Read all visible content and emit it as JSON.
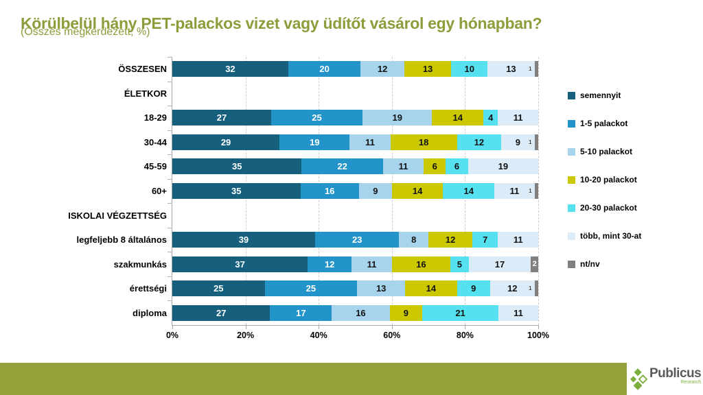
{
  "header": {
    "title": "Körülbelül hány PET-palackos vizet vagy üdítőt vásárol egy hónapban?",
    "subtitle": "(Összes megkérdezett, %)",
    "title_color": "#8e9c3b"
  },
  "chart_data": {
    "type": "bar",
    "stacked": true,
    "orientation": "horizontal",
    "xlim": [
      0,
      100
    ],
    "x_ticks": [
      "0%",
      "20%",
      "40%",
      "60%",
      "80%",
      "100%"
    ],
    "grid": "vertical dashed every 20%",
    "legend_position": "right",
    "series_labels": [
      "semennyit",
      "1-5 palackot",
      "5-10 palackot",
      "10-20 palackot",
      "20-30 palackot",
      "több, mint 30-at",
      "nt/nv"
    ],
    "series_colors": [
      "#16607e",
      "#2394c9",
      "#a7d3ec",
      "#cbc800",
      "#55e1ef",
      "#dbebf7",
      "#808080"
    ],
    "categories": [
      {
        "label": "ÖSSZESEN",
        "header": false,
        "values": [
          32,
          20,
          12,
          13,
          10,
          13,
          1
        ]
      },
      {
        "label": "ÉLETKOR",
        "header": true,
        "values": null
      },
      {
        "label": "18-29",
        "header": false,
        "values": [
          27,
          25,
          19,
          14,
          4,
          11,
          0
        ]
      },
      {
        "label": "30-44",
        "header": false,
        "values": [
          29,
          19,
          11,
          18,
          12,
          9,
          1
        ]
      },
      {
        "label": "45-59",
        "header": false,
        "values": [
          35,
          22,
          11,
          6,
          6,
          19,
          0
        ]
      },
      {
        "label": "60+",
        "header": false,
        "values": [
          35,
          16,
          9,
          14,
          14,
          11,
          1
        ]
      },
      {
        "label": "ISKOLAI VÉGZETTSÉG",
        "header": true,
        "values": null
      },
      {
        "label": "legfeljebb 8 általános",
        "header": false,
        "values": [
          39,
          23,
          8,
          12,
          7,
          11,
          0
        ]
      },
      {
        "label": "szakmunkás",
        "header": false,
        "values": [
          37,
          12,
          11,
          16,
          5,
          17,
          2
        ]
      },
      {
        "label": "érettségi",
        "header": false,
        "values": [
          25,
          25,
          13,
          14,
          9,
          12,
          1
        ]
      },
      {
        "label": "diploma",
        "header": false,
        "values": [
          27,
          17,
          16,
          9,
          21,
          11,
          0
        ]
      }
    ]
  },
  "footer": {
    "bar_color": "#97a23d",
    "brand": "Publicus",
    "brand_sub": "Research"
  }
}
